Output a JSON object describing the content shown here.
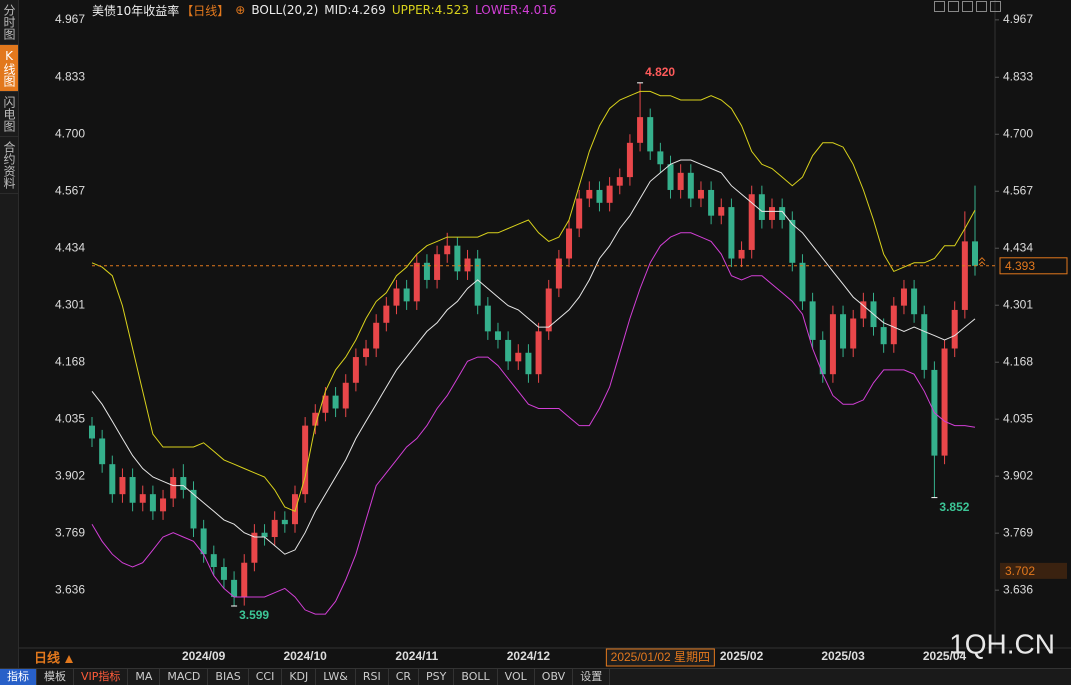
{
  "chart_data": {
    "type": "candlestick",
    "title": "美债10年收益率",
    "subtitle": "【日线】",
    "indicator": "BOLL(20,2)",
    "categories": [
      null,
      null,
      null,
      null,
      null,
      null,
      null,
      null,
      null,
      null,
      null,
      "2024/09",
      null,
      null,
      null,
      null,
      null,
      null,
      null,
      null,
      null,
      "2024/10",
      null,
      null,
      null,
      null,
      null,
      null,
      null,
      null,
      null,
      null,
      "2024/11",
      null,
      null,
      null,
      null,
      null,
      null,
      null,
      null,
      null,
      null,
      "2024/12",
      null,
      null,
      null,
      null,
      null,
      null,
      null,
      null,
      null,
      null,
      null,
      null,
      "2025/01/02 星期四",
      null,
      null,
      null,
      null,
      null,
      null,
      null,
      "2025/02",
      null,
      null,
      null,
      null,
      null,
      null,
      null,
      null,
      null,
      "2025/03",
      null,
      null,
      null,
      null,
      null,
      null,
      null,
      null,
      null,
      "2025/04",
      null,
      null,
      null
    ],
    "open": [
      4.02,
      3.99,
      3.93,
      3.86,
      3.9,
      3.84,
      3.86,
      3.82,
      3.85,
      3.9,
      3.87,
      3.78,
      3.72,
      3.69,
      3.66,
      3.62,
      3.7,
      3.77,
      3.76,
      3.8,
      3.79,
      3.86,
      4.02,
      4.05,
      4.09,
      4.06,
      4.12,
      4.18,
      4.2,
      4.26,
      4.3,
      4.34,
      4.31,
      4.4,
      4.36,
      4.42,
      4.44,
      4.38,
      4.41,
      4.3,
      4.24,
      4.22,
      4.17,
      4.19,
      4.14,
      4.24,
      4.34,
      4.41,
      4.48,
      4.55,
      4.57,
      4.54,
      4.58,
      4.6,
      4.68,
      4.74,
      4.66,
      4.63,
      4.57,
      4.61,
      4.55,
      4.57,
      4.51,
      4.53,
      4.41,
      4.43,
      4.56,
      4.5,
      4.53,
      4.5,
      4.4,
      4.31,
      4.22,
      4.14,
      4.28,
      4.2,
      4.27,
      4.31,
      4.25,
      4.21,
      4.3,
      4.34,
      4.28,
      4.15,
      3.95,
      4.2,
      4.29,
      4.45
    ],
    "high": [
      4.04,
      4.01,
      3.95,
      3.92,
      3.92,
      3.88,
      3.88,
      3.87,
      3.92,
      3.93,
      3.89,
      3.8,
      3.74,
      3.71,
      3.68,
      3.72,
      3.79,
      3.79,
      3.82,
      3.82,
      3.88,
      4.04,
      4.07,
      4.11,
      4.11,
      4.14,
      4.2,
      4.22,
      4.28,
      4.32,
      4.36,
      4.36,
      4.42,
      4.42,
      4.44,
      4.47,
      4.46,
      4.43,
      4.43,
      4.32,
      4.26,
      4.24,
      4.21,
      4.21,
      4.26,
      4.36,
      4.43,
      4.5,
      4.57,
      4.59,
      4.59,
      4.6,
      4.62,
      4.7,
      4.82,
      4.76,
      4.68,
      4.65,
      4.63,
      4.63,
      4.59,
      4.59,
      4.55,
      4.55,
      4.45,
      4.58,
      4.58,
      4.55,
      4.55,
      4.52,
      4.42,
      4.33,
      4.24,
      4.3,
      4.3,
      4.29,
      4.33,
      4.33,
      4.27,
      4.32,
      4.36,
      4.36,
      4.3,
      4.17,
      4.22,
      4.31,
      4.52,
      4.58
    ],
    "low": [
      3.97,
      3.91,
      3.84,
      3.84,
      3.82,
      3.82,
      3.8,
      3.8,
      3.83,
      3.85,
      3.76,
      3.7,
      3.67,
      3.64,
      3.599,
      3.6,
      3.68,
      3.74,
      3.74,
      3.77,
      3.77,
      3.84,
      4.0,
      4.03,
      4.04,
      4.04,
      4.1,
      4.16,
      4.18,
      4.24,
      4.28,
      4.29,
      4.29,
      4.34,
      4.34,
      4.4,
      4.36,
      4.36,
      4.28,
      4.22,
      4.2,
      4.15,
      4.15,
      4.12,
      4.12,
      4.22,
      4.32,
      4.39,
      4.46,
      4.53,
      4.52,
      4.52,
      4.56,
      4.58,
      4.66,
      4.64,
      4.61,
      4.55,
      4.55,
      4.53,
      4.53,
      4.49,
      4.49,
      4.39,
      4.39,
      4.41,
      4.48,
      4.48,
      4.48,
      4.38,
      4.29,
      4.2,
      4.12,
      4.12,
      4.18,
      4.18,
      4.25,
      4.23,
      4.19,
      4.19,
      4.28,
      4.26,
      4.13,
      3.852,
      3.93,
      4.18,
      4.27,
      4.37
    ],
    "close": [
      3.99,
      3.93,
      3.86,
      3.9,
      3.84,
      3.86,
      3.82,
      3.85,
      3.9,
      3.87,
      3.78,
      3.72,
      3.69,
      3.66,
      3.62,
      3.7,
      3.77,
      3.76,
      3.8,
      3.79,
      3.86,
      4.02,
      4.05,
      4.09,
      4.06,
      4.12,
      4.18,
      4.2,
      4.26,
      4.3,
      4.34,
      4.31,
      4.4,
      4.36,
      4.42,
      4.44,
      4.38,
      4.41,
      4.3,
      4.24,
      4.22,
      4.17,
      4.19,
      4.14,
      4.24,
      4.34,
      4.41,
      4.48,
      4.55,
      4.57,
      4.54,
      4.58,
      4.6,
      4.68,
      4.74,
      4.66,
      4.63,
      4.57,
      4.61,
      4.55,
      4.57,
      4.51,
      4.53,
      4.41,
      4.43,
      4.56,
      4.5,
      4.53,
      4.5,
      4.4,
      4.31,
      4.22,
      4.14,
      4.28,
      4.2,
      4.27,
      4.31,
      4.25,
      4.21,
      4.3,
      4.34,
      4.28,
      4.15,
      3.95,
      4.2,
      4.29,
      4.45,
      4.393
    ],
    "up_color": "#e8474a",
    "down_color": "#35b08c",
    "series": [
      {
        "name": "MID:4.269",
        "color": "#e6e6e6",
        "values": [
          4.1,
          4.07,
          4.03,
          3.99,
          3.95,
          3.92,
          3.9,
          3.89,
          3.88,
          3.88,
          3.86,
          3.84,
          3.82,
          3.8,
          3.79,
          3.77,
          3.76,
          3.76,
          3.74,
          3.72,
          3.73,
          3.77,
          3.82,
          3.86,
          3.9,
          3.94,
          3.99,
          4.03,
          4.07,
          4.11,
          4.15,
          4.18,
          4.21,
          4.24,
          4.26,
          4.29,
          4.31,
          4.34,
          4.36,
          4.34,
          4.32,
          4.3,
          4.29,
          4.27,
          4.25,
          4.25,
          4.27,
          4.29,
          4.32,
          4.36,
          4.41,
          4.44,
          4.48,
          4.51,
          4.55,
          4.59,
          4.61,
          4.63,
          4.64,
          4.64,
          4.63,
          4.62,
          4.61,
          4.58,
          4.56,
          4.54,
          4.52,
          4.52,
          4.52,
          4.49,
          4.47,
          4.44,
          4.41,
          4.38,
          4.35,
          4.32,
          4.3,
          4.28,
          4.26,
          4.25,
          4.24,
          4.25,
          4.24,
          4.23,
          4.22,
          4.23,
          4.25,
          4.269
        ]
      },
      {
        "name": "UPPER:4.523",
        "color": "#d9d21c",
        "values": [
          4.4,
          4.39,
          4.37,
          4.3,
          4.2,
          4.1,
          4.0,
          3.97,
          3.97,
          3.97,
          3.97,
          3.98,
          3.96,
          3.94,
          3.93,
          3.92,
          3.91,
          3.9,
          3.87,
          3.83,
          3.82,
          3.9,
          4.02,
          4.1,
          4.15,
          4.18,
          4.22,
          4.27,
          4.31,
          4.33,
          4.37,
          4.39,
          4.42,
          4.44,
          4.45,
          4.46,
          4.46,
          4.46,
          4.46,
          4.47,
          4.47,
          4.48,
          4.49,
          4.5,
          4.47,
          4.45,
          4.46,
          4.5,
          4.58,
          4.66,
          4.72,
          4.76,
          4.78,
          4.79,
          4.8,
          4.8,
          4.79,
          4.79,
          4.78,
          4.78,
          4.78,
          4.79,
          4.78,
          4.76,
          4.72,
          4.66,
          4.63,
          4.62,
          4.6,
          4.58,
          4.6,
          4.65,
          4.68,
          4.68,
          4.67,
          4.63,
          4.57,
          4.5,
          4.42,
          4.38,
          4.39,
          4.4,
          4.4,
          4.41,
          4.44,
          4.44,
          4.48,
          4.523
        ]
      },
      {
        "name": "LOWER:4.016",
        "color": "#d23fd6",
        "values": [
          3.79,
          3.75,
          3.72,
          3.7,
          3.69,
          3.7,
          3.73,
          3.76,
          3.77,
          3.76,
          3.75,
          3.72,
          3.67,
          3.64,
          3.62,
          3.62,
          3.62,
          3.62,
          3.63,
          3.64,
          3.62,
          3.59,
          3.58,
          3.58,
          3.61,
          3.66,
          3.72,
          3.8,
          3.88,
          3.91,
          3.94,
          3.97,
          3.99,
          4.02,
          4.06,
          4.09,
          4.13,
          4.17,
          4.18,
          4.18,
          4.16,
          4.13,
          4.1,
          4.07,
          4.06,
          4.06,
          4.06,
          4.04,
          4.02,
          4.02,
          4.06,
          4.11,
          4.19,
          4.27,
          4.34,
          4.4,
          4.44,
          4.46,
          4.47,
          4.47,
          4.46,
          4.45,
          4.42,
          4.37,
          4.36,
          4.37,
          4.37,
          4.35,
          4.33,
          4.31,
          4.28,
          4.2,
          4.14,
          4.09,
          4.07,
          4.07,
          4.08,
          4.12,
          4.15,
          4.15,
          4.15,
          4.14,
          4.1,
          4.05,
          4.03,
          4.02,
          4.02,
          4.016
        ]
      }
    ],
    "ylim": [
      3.508,
      4.99
    ],
    "yticks": [
      4.967,
      4.833,
      {
        "value": 4.7,
        "label": "4.700"
      },
      4.567,
      4.434,
      4.301,
      4.168,
      4.035,
      3.902,
      3.769,
      3.636
    ],
    "grid": false,
    "last_price": 4.393,
    "crosshair_value": 3.702,
    "annotations": [
      {
        "label": "4.820",
        "value": 4.82,
        "kind": "high"
      },
      {
        "label": "3.599",
        "value": 3.599,
        "kind": "low"
      },
      {
        "label": "3.852",
        "value": 3.852,
        "kind": "low"
      }
    ],
    "period": "日线",
    "watermark": "1QH.CN"
  },
  "ui": {
    "sidebar": [
      "分时图",
      "K线图",
      "闪电图",
      "合约资料"
    ],
    "toolbar": [
      "指标",
      "模板",
      "VIP指标",
      "MA",
      "MACD",
      "BIAS",
      "CCI",
      "KDJ",
      "LW&",
      "RSI",
      "CR",
      "PSY",
      "BOLL",
      "VOL",
      "OBV",
      "设置"
    ]
  }
}
